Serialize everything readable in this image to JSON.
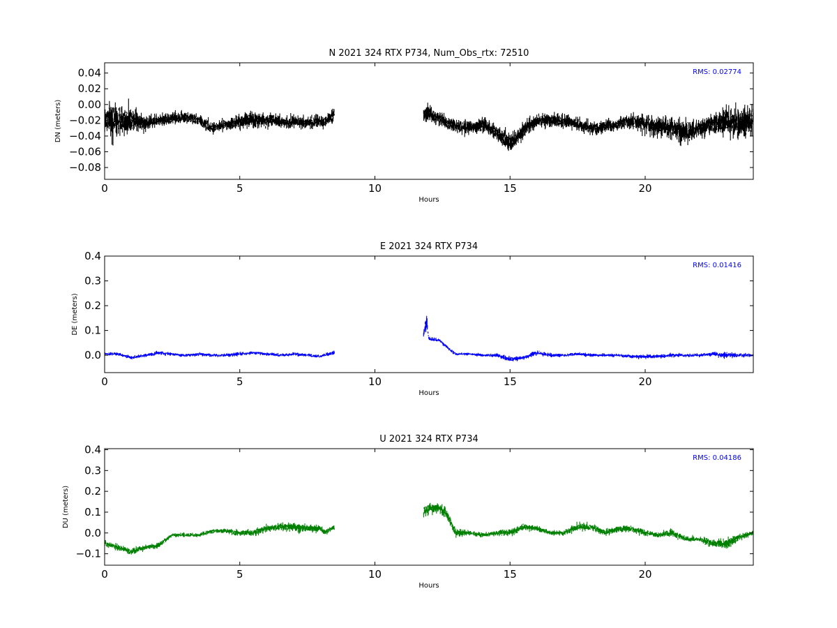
{
  "chart_data": [
    {
      "type": "scatter",
      "title": "N 2021 324 RTX  P734, Num_Obs_rtx: 72510",
      "xlabel": "Hours",
      "ylabel": "DN (meters)",
      "xlim": [
        0,
        24
      ],
      "ylim": [
        -0.095,
        0.053
      ],
      "xticks": [
        0,
        5,
        10,
        15,
        20
      ],
      "yticks": [
        -0.08,
        -0.06,
        -0.04,
        -0.02,
        0.0,
        0.02,
        0.04
      ],
      "ytick_decimals": 2,
      "grid": false,
      "color": "#000000",
      "annotation": "RMS:  0.02774",
      "annotation_color": "#0000ff",
      "series": [
        {
          "x": [
            0,
            0.25,
            0.5,
            0.75,
            1.0,
            1.25,
            1.5,
            2.0,
            2.5,
            3.0,
            3.5,
            4.0,
            4.5,
            5.0,
            5.5,
            6.0,
            6.5,
            7.0,
            7.5,
            8.0,
            8.1,
            8.5,
            11.8,
            12.0,
            12.5,
            13.0,
            13.5,
            14.0,
            14.5,
            15.0,
            15.3,
            15.6,
            16.0,
            16.5,
            17.0,
            17.5,
            18.0,
            18.5,
            19.0,
            19.5,
            20.0,
            20.5,
            21.0,
            21.5,
            22.0,
            22.5,
            23.0,
            23.5,
            24.0
          ],
          "y": [
            -0.018,
            -0.02,
            -0.022,
            -0.02,
            -0.018,
            -0.02,
            -0.024,
            -0.02,
            -0.018,
            -0.016,
            -0.02,
            -0.03,
            -0.025,
            -0.022,
            -0.018,
            -0.02,
            -0.022,
            -0.022,
            -0.023,
            -0.022,
            -0.024,
            -0.012,
            -0.015,
            -0.012,
            -0.02,
            -0.028,
            -0.03,
            -0.025,
            -0.035,
            -0.05,
            -0.04,
            -0.03,
            -0.02,
            -0.02,
            -0.022,
            -0.025,
            -0.03,
            -0.028,
            -0.025,
            -0.022,
            -0.025,
            -0.028,
            -0.03,
            -0.035,
            -0.03,
            -0.025,
            -0.02,
            -0.025,
            -0.02
          ],
          "spread": [
            0.03,
            0.035,
            0.035,
            0.03,
            0.025,
            0.02,
            0.015,
            0.012,
            0.012,
            0.012,
            0.012,
            0.012,
            0.012,
            0.014,
            0.016,
            0.014,
            0.013,
            0.012,
            0.012,
            0.012,
            0.012,
            0.015,
            0.02,
            0.018,
            0.014,
            0.014,
            0.014,
            0.014,
            0.015,
            0.02,
            0.015,
            0.015,
            0.015,
            0.014,
            0.014,
            0.014,
            0.013,
            0.013,
            0.014,
            0.016,
            0.018,
            0.02,
            0.02,
            0.025,
            0.02,
            0.02,
            0.03,
            0.03,
            0.03
          ]
        }
      ]
    },
    {
      "type": "scatter",
      "title": "E 2021 324 RTX  P734",
      "xlabel": "Hours",
      "ylabel": "DE (meters)",
      "xlim": [
        0,
        24
      ],
      "ylim": [
        -0.07,
        0.4
      ],
      "xticks": [
        0,
        5,
        10,
        15,
        20
      ],
      "yticks": [
        0.0,
        0.1,
        0.2,
        0.3,
        0.4
      ],
      "ytick_decimals": 1,
      "grid": false,
      "color": "#0000ff",
      "annotation": "RMS:  0.01416",
      "annotation_color": "#0000ff",
      "series": [
        {
          "x": [
            0,
            0.5,
            1.0,
            1.5,
            2.0,
            2.5,
            3.0,
            3.5,
            4.0,
            4.5,
            5.0,
            5.5,
            6.0,
            6.5,
            7.0,
            7.5,
            8.0,
            8.1,
            8.5,
            11.8,
            11.9,
            12.0,
            12.4,
            12.8,
            13.0,
            13.5,
            14.0,
            14.5,
            15.0,
            15.5,
            16.0,
            16.5,
            17.0,
            17.5,
            18.0,
            18.5,
            19.0,
            19.5,
            20.0,
            20.5,
            21.0,
            21.5,
            22.0,
            22.5,
            23.0,
            23.5,
            24.0
          ],
          "y": [
            0.005,
            0.005,
            -0.01,
            0.0,
            0.01,
            0.005,
            0.0,
            0.005,
            0.0,
            0.0,
            0.005,
            0.01,
            0.005,
            0.0,
            0.005,
            0.0,
            -0.005,
            0.0,
            0.01,
            0.08,
            0.14,
            0.065,
            0.06,
            0.02,
            0.005,
            0.005,
            0.0,
            0.0,
            -0.015,
            -0.01,
            0.01,
            0.0,
            0.0,
            0.005,
            0.0,
            0.0,
            0.0,
            -0.005,
            -0.005,
            -0.005,
            0.0,
            0.0,
            0.0,
            0.005,
            0.0,
            0.0,
            0.0
          ],
          "spread": [
            0.01,
            0.01,
            0.01,
            0.01,
            0.012,
            0.01,
            0.01,
            0.01,
            0.01,
            0.01,
            0.012,
            0.01,
            0.01,
            0.01,
            0.01,
            0.01,
            0.01,
            0.01,
            0.012,
            0.03,
            0.05,
            0.012,
            0.01,
            0.01,
            0.008,
            0.01,
            0.01,
            0.012,
            0.014,
            0.012,
            0.014,
            0.012,
            0.01,
            0.01,
            0.01,
            0.01,
            0.01,
            0.012,
            0.014,
            0.012,
            0.012,
            0.01,
            0.01,
            0.012,
            0.02,
            0.012,
            0.012
          ]
        }
      ]
    },
    {
      "type": "scatter",
      "title": "U 2021 324 RTX  P734",
      "xlabel": "Hours",
      "ylabel": "DU (meters)",
      "xlim": [
        0,
        24
      ],
      "ylim": [
        -0.155,
        0.405
      ],
      "xticks": [
        0,
        5,
        10,
        15,
        20
      ],
      "yticks": [
        -0.1,
        0.0,
        0.1,
        0.2,
        0.3,
        0.4
      ],
      "ytick_decimals": 1,
      "grid": false,
      "color": "#008000",
      "annotation": "RMS:  0.04186",
      "annotation_color": "#0000ff",
      "series": [
        {
          "x": [
            0,
            0.5,
            1.0,
            1.5,
            2.0,
            2.5,
            3.0,
            3.5,
            4.0,
            4.5,
            5.0,
            5.5,
            6.0,
            6.5,
            7.0,
            7.5,
            8.0,
            8.1,
            8.5,
            11.8,
            12.0,
            12.3,
            12.6,
            13.0,
            13.5,
            14.0,
            14.5,
            15.0,
            15.5,
            16.0,
            16.5,
            17.0,
            17.5,
            18.0,
            18.5,
            19.0,
            19.5,
            20.0,
            20.5,
            21.0,
            21.5,
            22.0,
            22.5,
            23.0,
            23.5,
            24.0
          ],
          "y": [
            -0.05,
            -0.07,
            -0.09,
            -0.07,
            -0.06,
            -0.01,
            -0.01,
            -0.01,
            0.01,
            0.01,
            0.0,
            0.0,
            0.02,
            0.03,
            0.03,
            0.02,
            0.02,
            0.0,
            0.03,
            0.1,
            0.12,
            0.12,
            0.1,
            0.0,
            0.0,
            -0.01,
            0.0,
            0.0,
            0.03,
            0.02,
            0.0,
            0.0,
            0.03,
            0.03,
            0.0,
            0.02,
            0.02,
            0.0,
            -0.01,
            0.0,
            -0.03,
            -0.03,
            -0.05,
            -0.05,
            -0.02,
            0.0
          ],
          "spread": [
            0.02,
            0.025,
            0.025,
            0.02,
            0.02,
            0.015,
            0.015,
            0.015,
            0.015,
            0.018,
            0.02,
            0.025,
            0.03,
            0.03,
            0.035,
            0.03,
            0.025,
            0.02,
            0.02,
            0.04,
            0.04,
            0.04,
            0.04,
            0.03,
            0.02,
            0.02,
            0.02,
            0.025,
            0.025,
            0.02,
            0.02,
            0.02,
            0.03,
            0.03,
            0.025,
            0.025,
            0.025,
            0.025,
            0.02,
            0.03,
            0.025,
            0.02,
            0.03,
            0.04,
            0.02,
            0.02
          ]
        }
      ]
    }
  ]
}
